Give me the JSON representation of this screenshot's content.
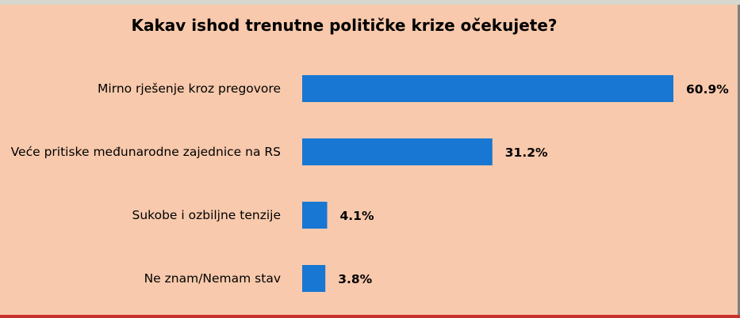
{
  "chart_data": {
    "type": "bar",
    "orientation": "horizontal",
    "title": "Kakav ishod trenutne političke krize očekujete?",
    "categories": [
      "Mirno rješenje kroz pregovore",
      "Veće pritiske međunarodne zajednice na RS",
      "Sukobe i ozbiljne tenzije",
      "Ne znam/Nemam stav"
    ],
    "values": [
      60.9,
      31.2,
      4.1,
      3.8
    ],
    "value_labels": [
      "60.9%",
      "31.2%",
      "4.1%",
      "3.8%"
    ],
    "xlim": [
      0,
      60.9
    ],
    "grid": false,
    "legend": "none",
    "colors": {
      "bar": "#1777d2",
      "background": "#f8c9ac",
      "bottom_edge": "#c8302a"
    }
  }
}
